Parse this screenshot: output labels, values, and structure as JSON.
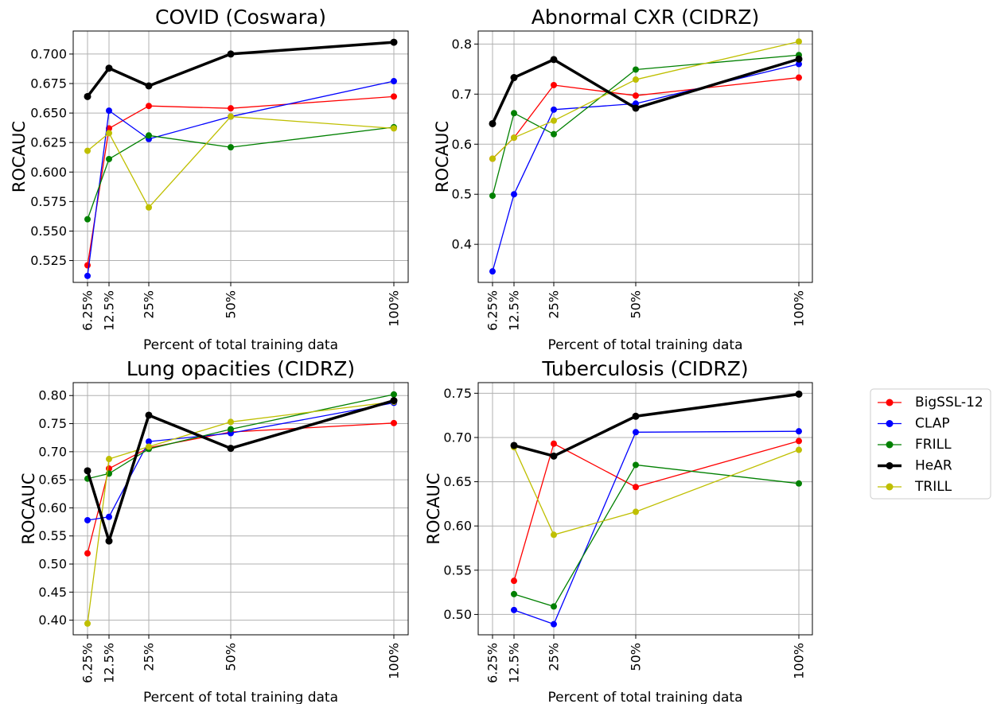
{
  "legend": {
    "entries": [
      {
        "label": "BigSSL-12",
        "color": "#ff0000"
      },
      {
        "label": "CLAP",
        "color": "#0000ff"
      },
      {
        "label": "FRILL",
        "color": "#008000"
      },
      {
        "label": "HeAR",
        "color": "#000000"
      },
      {
        "label": "TRILL",
        "color": "#bfbf00"
      }
    ]
  },
  "chart_data": [
    {
      "type": "line",
      "title": "COVID (Coswara)",
      "xlabel": "Percent of total training data",
      "ylabel": "ROCAUC",
      "x": [
        6.25,
        12.5,
        25,
        50,
        100
      ],
      "xtick_labels": [
        "6.25%",
        "12.5%",
        "25%",
        "50%",
        "100%"
      ],
      "ylim": [
        0.5065,
        0.7195
      ],
      "yticks": [
        0.525,
        0.55,
        0.575,
        0.6,
        0.625,
        0.65,
        0.675,
        0.7
      ],
      "ytick_labels": [
        "0.525",
        "0.550",
        "0.575",
        "0.600",
        "0.625",
        "0.650",
        "0.675",
        "0.700"
      ],
      "grid": true,
      "series": [
        {
          "name": "BigSSL-12",
          "color": "#ff0000",
          "values": [
            0.521,
            0.637,
            0.656,
            0.654,
            0.664
          ]
        },
        {
          "name": "CLAP",
          "color": "#0000ff",
          "values": [
            0.512,
            0.652,
            0.628,
            0.647,
            0.677
          ]
        },
        {
          "name": "FRILL",
          "color": "#008000",
          "values": [
            0.56,
            0.611,
            0.631,
            0.621,
            0.638
          ]
        },
        {
          "name": "HeAR",
          "color": "#000000",
          "values": [
            0.664,
            0.688,
            0.673,
            0.7,
            0.71
          ],
          "bold": true
        },
        {
          "name": "TRILL",
          "color": "#bfbf00",
          "values": [
            0.618,
            0.633,
            0.57,
            0.647,
            0.637
          ]
        }
      ]
    },
    {
      "type": "line",
      "title": "Abnormal CXR (CIDRZ)",
      "xlabel": "Percent of total training data",
      "ylabel": "ROCAUC",
      "x": [
        6.25,
        12.5,
        25,
        50,
        100
      ],
      "xtick_labels": [
        "6.25%",
        "12.5%",
        "25%",
        "50%",
        "100%"
      ],
      "ylim": [
        0.324,
        0.826
      ],
      "yticks": [
        0.4,
        0.5,
        0.6,
        0.7,
        0.8
      ],
      "ytick_labels": [
        "0.4",
        "0.5",
        "0.6",
        "0.7",
        "0.8"
      ],
      "grid": true,
      "series": [
        {
          "name": "BigSSL-12",
          "color": "#ff0000",
          "values": [
            0.571,
            0.613,
            0.718,
            0.697,
            0.733
          ]
        },
        {
          "name": "CLAP",
          "color": "#0000ff",
          "values": [
            0.346,
            0.5,
            0.669,
            0.681,
            0.76
          ]
        },
        {
          "name": "FRILL",
          "color": "#008000",
          "values": [
            0.497,
            0.662,
            0.62,
            0.749,
            0.778
          ]
        },
        {
          "name": "HeAR",
          "color": "#000000",
          "values": [
            0.641,
            0.733,
            0.769,
            0.672,
            0.77
          ],
          "bold": true
        },
        {
          "name": "TRILL",
          "color": "#bfbf00",
          "values": [
            0.571,
            0.613,
            0.647,
            0.729,
            0.805
          ]
        }
      ]
    },
    {
      "type": "line",
      "title": "Lung opacities (CIDRZ)",
      "xlabel": "Percent of total training data",
      "ylabel": "ROCAUC",
      "x": [
        6.25,
        12.5,
        25,
        50,
        100
      ],
      "xtick_labels": [
        "6.25%",
        "12.5%",
        "25%",
        "50%",
        "100%"
      ],
      "ylim": [
        0.374,
        0.823
      ],
      "yticks": [
        0.4,
        0.45,
        0.5,
        0.55,
        0.6,
        0.65,
        0.7,
        0.75,
        0.8
      ],
      "ytick_labels": [
        "0.40",
        "0.45",
        "0.50",
        "0.55",
        "0.60",
        "0.65",
        "0.70",
        "0.75",
        "0.80"
      ],
      "grid": true,
      "series": [
        {
          "name": "BigSSL-12",
          "color": "#ff0000",
          "values": [
            0.519,
            0.67,
            0.707,
            0.735,
            0.751
          ]
        },
        {
          "name": "CLAP",
          "color": "#0000ff",
          "values": [
            0.578,
            0.584,
            0.718,
            0.733,
            0.787
          ]
        },
        {
          "name": "FRILL",
          "color": "#008000",
          "values": [
            0.652,
            0.661,
            0.705,
            0.74,
            0.802
          ]
        },
        {
          "name": "HeAR",
          "color": "#000000",
          "values": [
            0.666,
            0.541,
            0.765,
            0.706,
            0.791
          ],
          "bold": true
        },
        {
          "name": "TRILL",
          "color": "#bfbf00",
          "values": [
            0.394,
            0.687,
            0.709,
            0.753,
            0.789
          ]
        }
      ]
    },
    {
      "type": "line",
      "title": "Tuberculosis (CIDRZ)",
      "xlabel": "Percent of total training data",
      "ylabel": "ROCAUC",
      "x": [
        6.25,
        12.5,
        25,
        50,
        100
      ],
      "xtick_labels": [
        "6.25%",
        "12.5%",
        "25%",
        "50%",
        "100%"
      ],
      "ylim": [
        0.477,
        0.762
      ],
      "yticks": [
        0.5,
        0.55,
        0.6,
        0.65,
        0.7,
        0.75
      ],
      "ytick_labels": [
        "0.50",
        "0.55",
        "0.60",
        "0.65",
        "0.70",
        "0.75"
      ],
      "grid": true,
      "series": [
        {
          "name": "BigSSL-12",
          "color": "#ff0000",
          "x": [
            12.5,
            25,
            50,
            100
          ],
          "values": [
            0.538,
            0.693,
            0.644,
            0.696
          ]
        },
        {
          "name": "CLAP",
          "color": "#0000ff",
          "x": [
            12.5,
            25,
            50,
            100
          ],
          "values": [
            0.505,
            0.489,
            0.706,
            0.707
          ]
        },
        {
          "name": "FRILL",
          "color": "#008000",
          "x": [
            12.5,
            25,
            50,
            100
          ],
          "values": [
            0.523,
            0.509,
            0.669,
            0.648
          ]
        },
        {
          "name": "HeAR",
          "color": "#000000",
          "x": [
            12.5,
            25,
            50,
            100
          ],
          "values": [
            0.691,
            0.679,
            0.724,
            0.749
          ],
          "bold": true
        },
        {
          "name": "TRILL",
          "color": "#bfbf00",
          "x": [
            12.5,
            25,
            50,
            100
          ],
          "values": [
            0.689,
            0.59,
            0.616,
            0.686
          ]
        }
      ]
    }
  ]
}
